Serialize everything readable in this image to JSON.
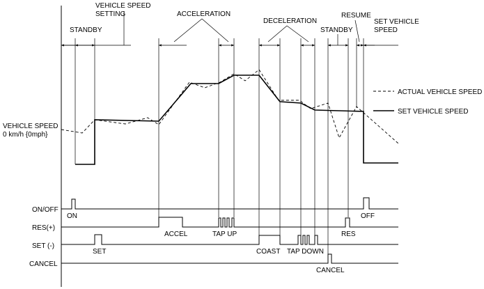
{
  "phases": {
    "standby_1": "STANDBY",
    "speed_setting_1": "VEHICLE SPEED",
    "speed_setting_2": "SETTING",
    "acceleration": "ACCELERATION",
    "deceleration": "DECELERATION",
    "standby_2": "STANDBY",
    "resume": "RESUME",
    "set_speed_1": "SET VEHICLE",
    "set_speed_2": "SPEED"
  },
  "legend": {
    "actual": "ACTUAL VEHICLE SPEED",
    "set": "SET VEHICLE SPEED"
  },
  "y_axis": {
    "label_1": "VEHICLE SPEED",
    "label_2": "0 km/h {0mph}"
  },
  "signals": {
    "on_off": "ON/OFF",
    "res": "RES(+)",
    "set": "SET (-)",
    "cancel": "CANCEL"
  },
  "events": {
    "on": "ON",
    "off": "OFF",
    "accel": "ACCEL",
    "tap_up": "TAP UP",
    "res": "RES",
    "set": "SET",
    "coast": "COAST",
    "tap_down": "TAP DOWN",
    "cancel": "CANCEL"
  }
}
